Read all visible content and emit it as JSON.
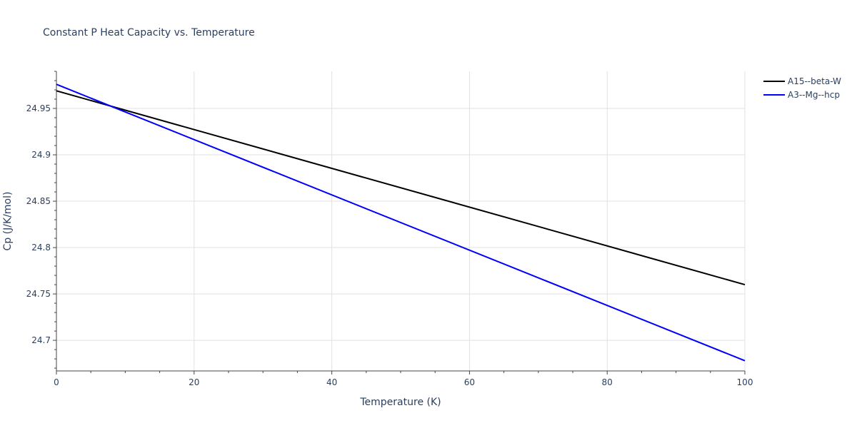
{
  "chart_data": {
    "type": "line",
    "title": "Constant P Heat Capacity vs. Temperature",
    "xlabel": "Temperature (K)",
    "ylabel": "Cp (J/K/mol)",
    "xlim": [
      0,
      100
    ],
    "ylim": [
      24.667,
      24.99
    ],
    "x_ticks": [
      0,
      20,
      40,
      60,
      80,
      100
    ],
    "x_tick_labels": [
      "0",
      "20",
      "40",
      "60",
      "80",
      "100"
    ],
    "y_ticks": [
      24.7,
      24.75,
      24.8,
      24.85,
      24.9,
      24.95
    ],
    "y_tick_labels": [
      "24.7",
      "24.75",
      "24.8",
      "24.85",
      "24.9",
      "24.95"
    ],
    "grid": true,
    "legend_position": "top-right",
    "series": [
      {
        "name": "A15--beta-W",
        "color": "#000000",
        "x": [
          0,
          100
        ],
        "y": [
          24.969,
          24.76
        ]
      },
      {
        "name": "A3--Mg--hcp",
        "color": "#0000ff",
        "x": [
          0,
          100
        ],
        "y": [
          24.976,
          24.678
        ]
      }
    ]
  }
}
